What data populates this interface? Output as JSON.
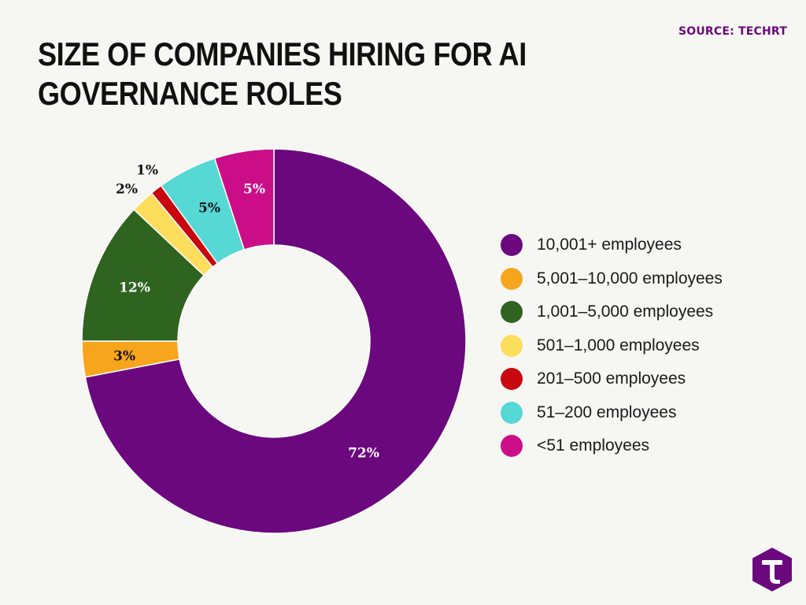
{
  "header": {
    "source": "SOURCE: TECHRT",
    "title": "SIZE OF COMPANIES HIRING FOR AI GOVERNANCE ROLES"
  },
  "chart_data": {
    "type": "pie",
    "title": "SIZE OF COMPANIES HIRING FOR AI GOVERNANCE ROLES",
    "donut": true,
    "legend_position": "right",
    "categories": [
      "10,001+ employees",
      "5,001–10,000 employees",
      "1,001–5,000 employees",
      "501–1,000 employees",
      "201–500 employees",
      "51–200 employees",
      "<51 employees"
    ],
    "values": [
      72,
      3,
      12,
      2,
      1,
      5,
      5
    ],
    "labels": [
      "72%",
      "3%",
      "12%",
      "2%",
      "1%",
      "5%",
      "5%"
    ],
    "colors": [
      "#6b087e",
      "#f8a51e",
      "#2e6320",
      "#fcdd5c",
      "#c8070f",
      "#56d8d5",
      "#cc0d88"
    ],
    "label_colors": [
      "#ffffff",
      "#111111",
      "#ffffff",
      "#111111",
      "#111111",
      "#111111",
      "#ffffff"
    ]
  },
  "legend": {
    "items": [
      {
        "label": "10,001+ employees",
        "color": "#6b087e"
      },
      {
        "label": "5,001–10,000 employees",
        "color": "#f8a51e"
      },
      {
        "label": "1,001–5,000 employees",
        "color": "#2e6320"
      },
      {
        "label": "501–1,000 employees",
        "color": "#fcdd5c"
      },
      {
        "label": "201–500 employees",
        "color": "#c8070f"
      },
      {
        "label": "51–200 employees",
        "color": "#56d8d5"
      },
      {
        "label": "<51 employees",
        "color": "#cc0d88"
      }
    ]
  },
  "logo": {
    "icon": "techrt-t-logo-icon",
    "color": "#6b087e"
  }
}
